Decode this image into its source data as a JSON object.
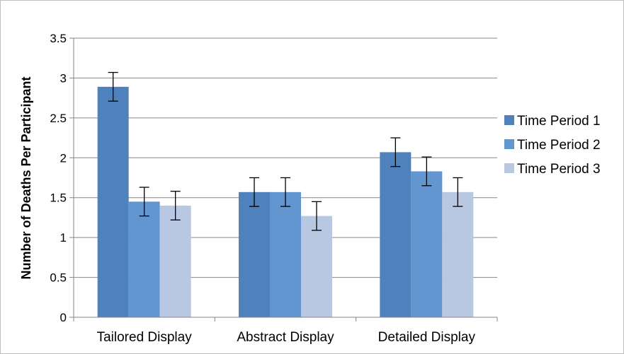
{
  "chart_data": {
    "type": "bar",
    "categories": [
      "Tailored Display",
      "Abstract Display",
      "Detailed Display"
    ],
    "series": [
      {
        "name": "Time Period 1",
        "color": "#4f81bd",
        "values": [
          2.89,
          1.57,
          2.07
        ],
        "errors": [
          0.18,
          0.18,
          0.18
        ]
      },
      {
        "name": "Time Period 2",
        "color": "#6196d0",
        "values": [
          1.45,
          1.57,
          1.83
        ],
        "errors": [
          0.18,
          0.18,
          0.18
        ]
      },
      {
        "name": "Time Period 3",
        "color": "#b9c8e2",
        "values": [
          1.4,
          1.27,
          1.57
        ],
        "errors": [
          0.18,
          0.18,
          0.18
        ]
      }
    ],
    "ylabel": "Number of Deaths Per Participant",
    "ylim": [
      0,
      3.5
    ],
    "yticks": [
      "0",
      "0.5",
      "1",
      "1.5",
      "2",
      "2.5",
      "3",
      "3.5"
    ],
    "legend_position": "right",
    "grid": true
  }
}
